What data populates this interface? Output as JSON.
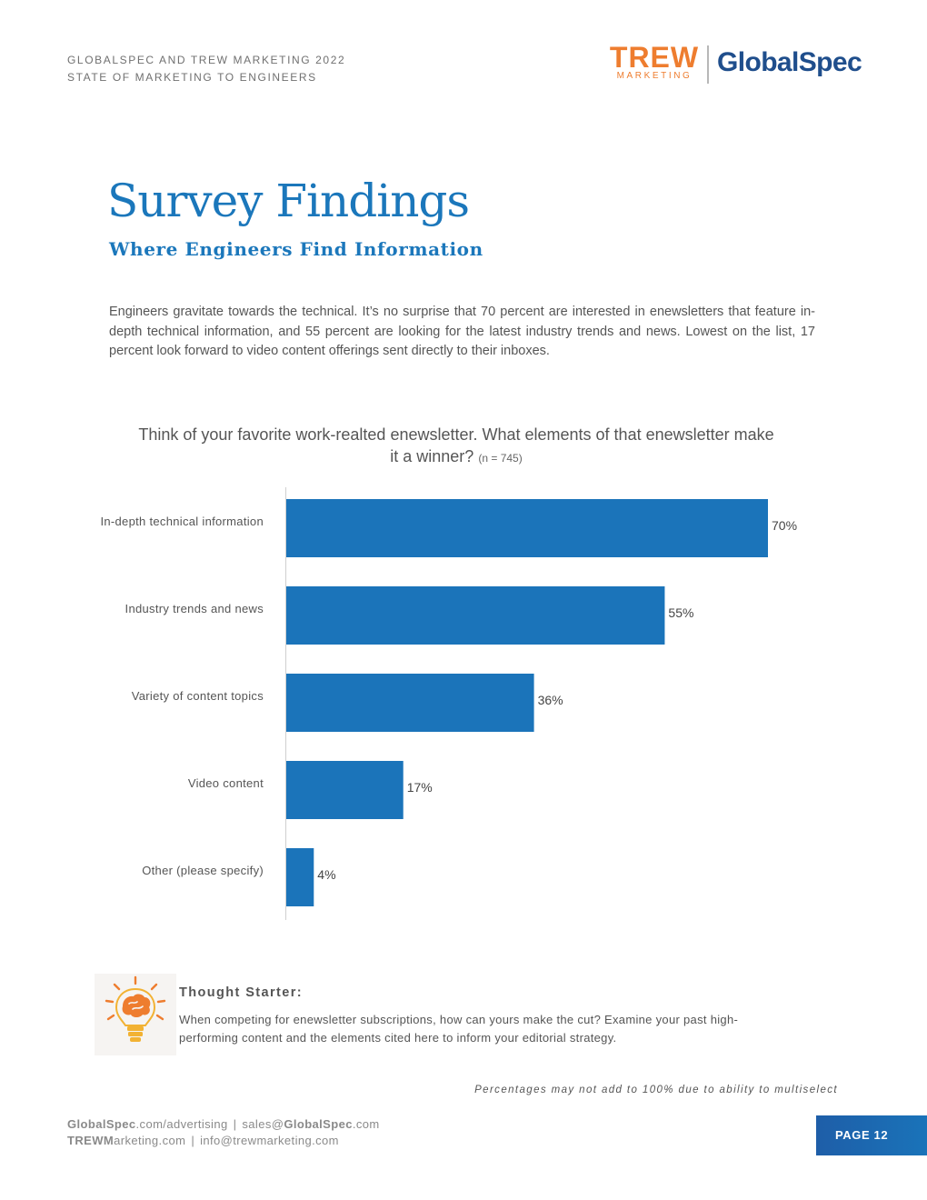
{
  "header": {
    "line1": "GLOBALSPEC AND TREW MARKETING 2022",
    "line2": "STATE OF MARKETING TO ENGINEERS"
  },
  "logos": {
    "trew_word": "TREW",
    "trew_sub": "MARKETING",
    "globalspec": "GlobalSpec",
    "trew_color": "#ee7d2f",
    "globalspec_color": "#1f4e8c"
  },
  "title": "Survey Findings",
  "subtitle": "Where Engineers Find Information",
  "intro": "Engineers gravitate towards the technical. It’s no surprise that 70 percent are interested in enewsletters that feature in-depth technical information, and 55 percent are looking for the latest industry trends and news. Lowest on the list, 17 percent look forward to video content offerings sent directly to their inboxes.",
  "chart_data": {
    "type": "bar",
    "orientation": "horizontal",
    "title": "Think of your favorite work-realted enewsletter. What elements of that enewsletter make it a winner?",
    "title_note": "(n = 745)",
    "categories": [
      "In-depth technical information",
      "Industry trends and news",
      "Variety of content topics",
      "Video content",
      "Other (please specify)"
    ],
    "values": [
      70,
      55,
      36,
      17,
      4
    ],
    "value_labels": [
      "70%",
      "55%",
      "36%",
      "17%",
      "4%"
    ],
    "unit": "%",
    "xlim": [
      0,
      70
    ],
    "grid": false,
    "bar_color": "#1b74ba"
  },
  "tip": {
    "icon": "lightbulb-brain-icon",
    "heading": "Thought Starter:",
    "body": "When competing for enewsletter subscriptions, how can yours make the cut? Examine your past high-performing content and the elements cited here to inform your editorial strategy."
  },
  "footnote": "Percentages may not add to 100% due to ability to multiselect",
  "footer": {
    "site1_bold": "GlobalSpec",
    "site1_rest": ".com/advertising",
    "email1_pre": "sales@",
    "email1_bold": "GlobalSpec",
    "email1_rest": ".com",
    "site2_bold": "TREWM",
    "site2_rest": "arketing.com",
    "email2": "info@trewmarketing.com",
    "separator": "|"
  },
  "page_label": "PAGE 12",
  "accent_color": "#1b77bb"
}
